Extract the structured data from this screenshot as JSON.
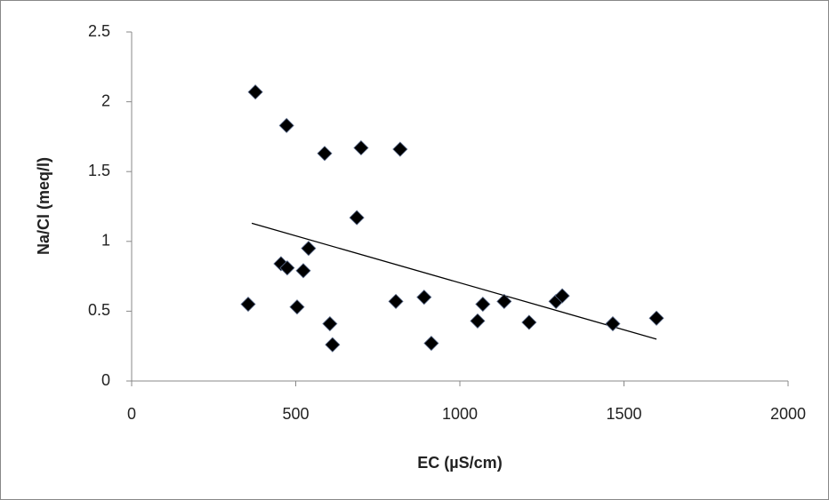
{
  "chart_data": {
    "type": "scatter",
    "x_label": "EC (µS/cm)",
    "y_label": "Na/Cl (meq/l)",
    "x": [
      355,
      377,
      455,
      474,
      472,
      504,
      523,
      539,
      588,
      604,
      612,
      686,
      699,
      805,
      818,
      891,
      913,
      1054,
      1070,
      1135,
      1211,
      1293,
      1312,
      1466,
      1599
    ],
    "values": [
      0.55,
      2.07,
      0.84,
      0.81,
      1.83,
      0.53,
      0.79,
      0.95,
      1.63,
      0.41,
      0.26,
      1.17,
      1.67,
      0.57,
      1.66,
      0.6,
      0.27,
      0.43,
      0.55,
      0.57,
      0.42,
      0.57,
      0.61,
      0.41,
      0.45
    ],
    "color": "#000000",
    "trendline": {
      "x": [
        366,
        1599
      ],
      "y": [
        1.13,
        0.3
      ],
      "color": "#000000"
    },
    "xlim": [
      0,
      2000
    ],
    "xticks": [
      0,
      500,
      1000,
      1500,
      2000
    ],
    "ylim": [
      0,
      2.5
    ],
    "yticks": [
      0,
      0.5,
      1,
      1.5,
      2,
      2.5
    ],
    "grid": false
  }
}
